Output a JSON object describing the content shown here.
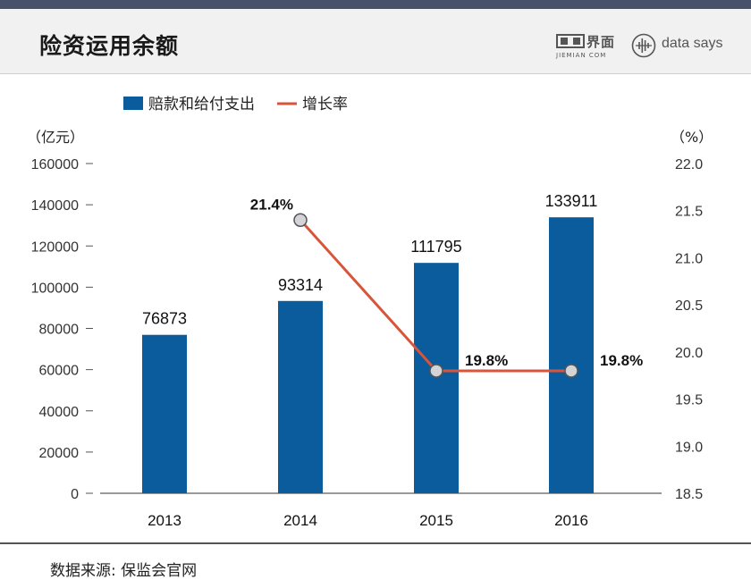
{
  "header": {
    "title": "险资运用余额",
    "logo_jiemian_cn": "界面",
    "logo_jiemian_en": "JIEMIAN COM",
    "logo_datasays": "data says"
  },
  "chart_data": {
    "type": "bar",
    "title": "险资运用余额",
    "categories": [
      "2013",
      "2014",
      "2015",
      "2016"
    ],
    "series": [
      {
        "name": "赔款和给付支出",
        "type": "bar",
        "axis": "left",
        "color": "#0b5c9c",
        "values": [
          76873,
          93314,
          111795,
          133911
        ],
        "labels": [
          "76873",
          "93314",
          "111795",
          "133911"
        ]
      },
      {
        "name": "增长率",
        "type": "line",
        "axis": "right",
        "color": "#d9553a",
        "values": [
          null,
          21.4,
          19.8,
          19.8
        ],
        "labels": [
          "",
          "21.4%",
          "19.8%",
          "19.8%"
        ]
      }
    ],
    "y_left": {
      "unit_label": "（亿元）",
      "range": [
        0,
        160000
      ],
      "ticks": [
        "0",
        "20000",
        "40000",
        "60000",
        "80000",
        "100000",
        "120000",
        "140000",
        "160000"
      ]
    },
    "y_right": {
      "unit_label": "（%）",
      "range": [
        18.5,
        22.0
      ],
      "ticks": [
        "18.5",
        "19.0",
        "19.5",
        "20.0",
        "20.5",
        "21.0",
        "21.5",
        "22.0"
      ]
    },
    "legend_position": "top-left",
    "grid": false
  },
  "footer": {
    "source": "数据来源: 保监会官网"
  }
}
